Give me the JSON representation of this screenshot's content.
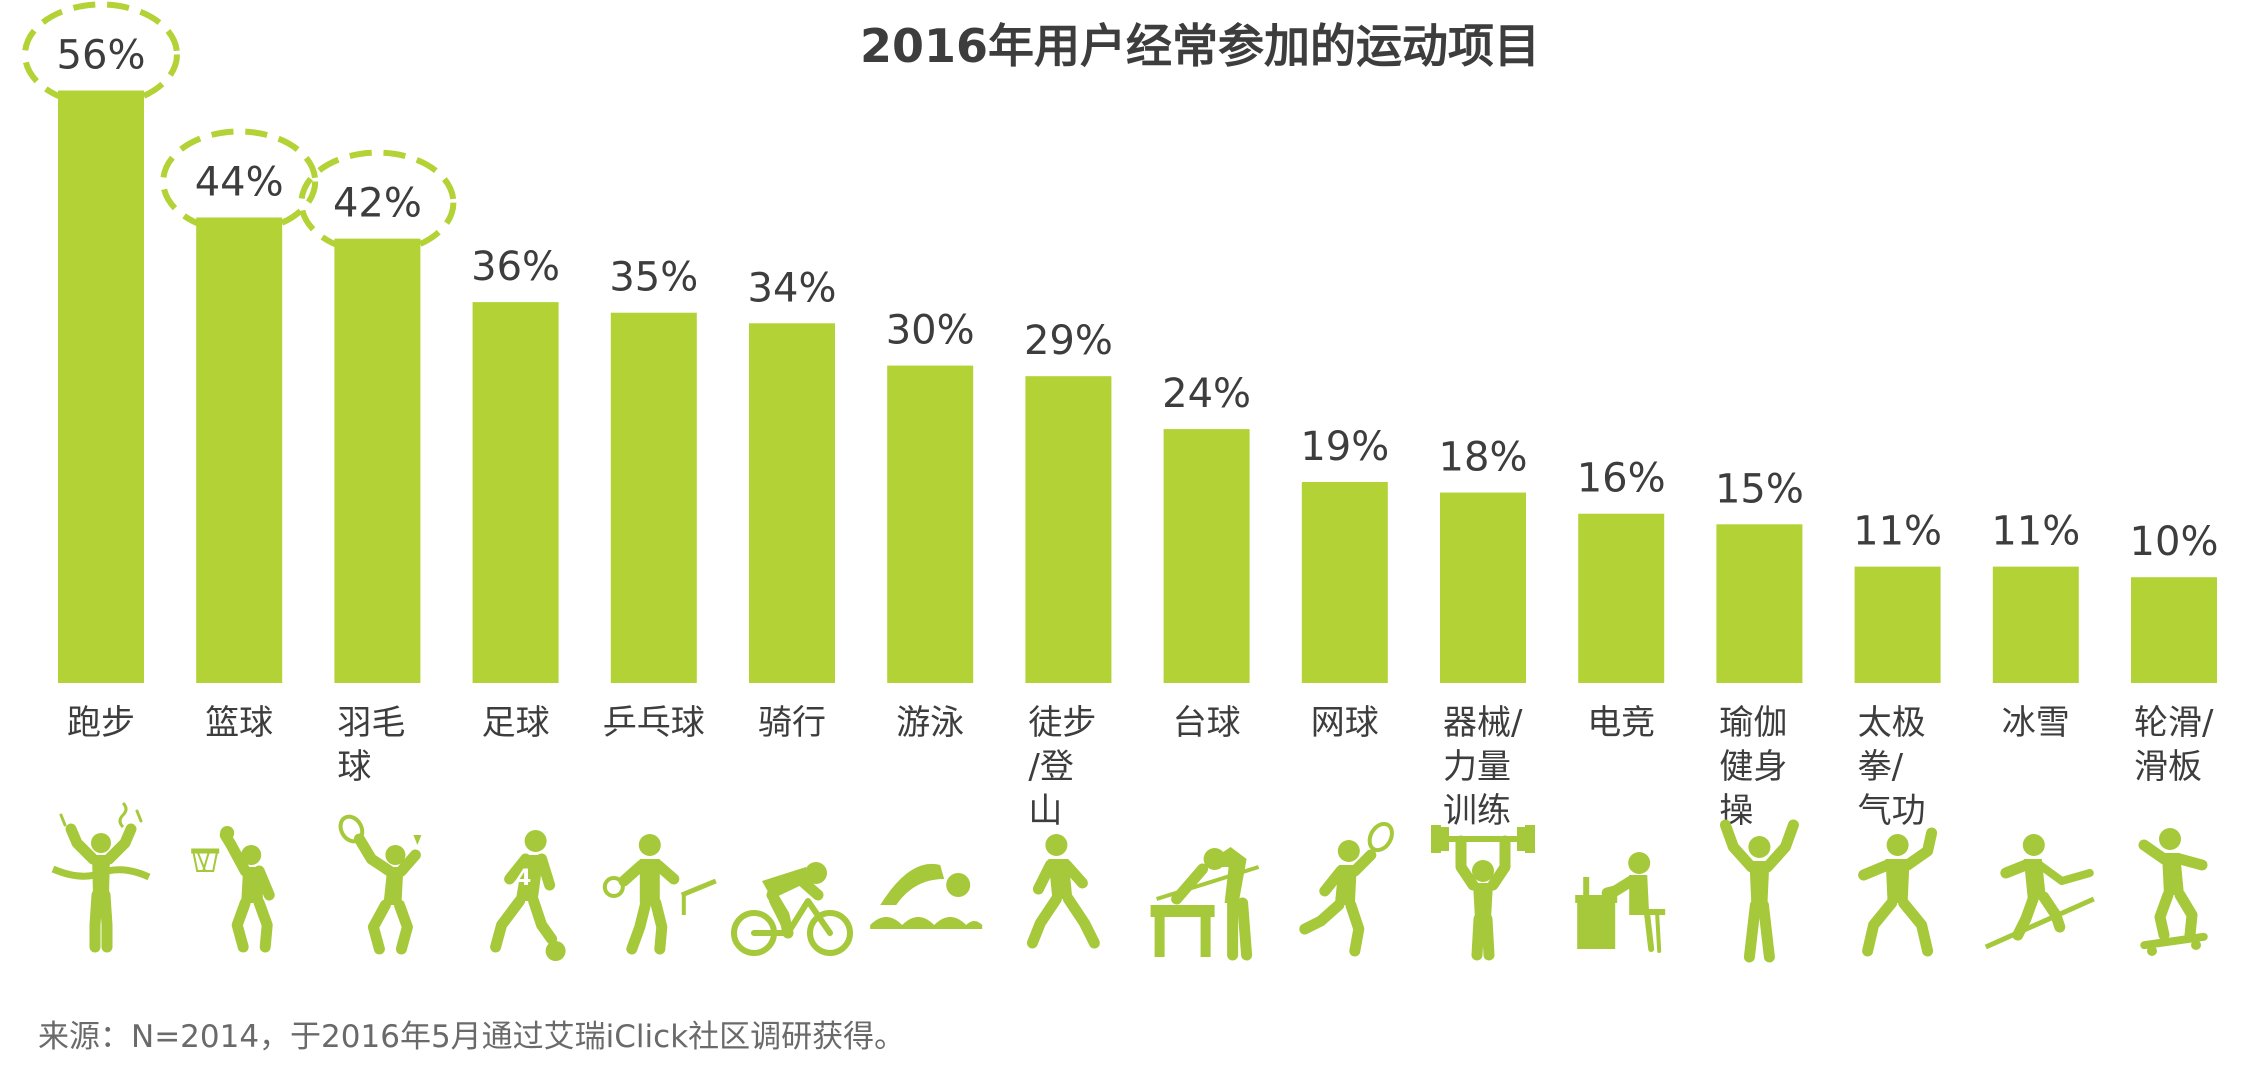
{
  "chart_data": {
    "type": "bar",
    "title": "2016年用户经常参加的运动项目",
    "categories": [
      "跑步",
      "篮球",
      "羽毛球",
      "足球",
      "乒乓球",
      "骑行",
      "游泳",
      "徒步/登山",
      "台球",
      "网球",
      "器械/力量训练",
      "电竞",
      "瑜伽健身操",
      "太极拳/气功",
      "冰雪",
      "轮滑/滑板"
    ],
    "category_lines": [
      [
        "跑步"
      ],
      [
        "篮球"
      ],
      [
        "羽毛",
        "球"
      ],
      [
        "足球"
      ],
      [
        "乒乓球"
      ],
      [
        "骑行"
      ],
      [
        "游泳"
      ],
      [
        "徒步",
        "/登",
        "山"
      ],
      [
        "台球"
      ],
      [
        "网球"
      ],
      [
        "器械/",
        "力量",
        "训练"
      ],
      [
        "电竞"
      ],
      [
        "瑜伽",
        "健身",
        "操"
      ],
      [
        "太极",
        "拳/",
        "气功"
      ],
      [
        "冰雪"
      ],
      [
        "轮滑/",
        "滑板"
      ]
    ],
    "values": [
      56,
      44,
      42,
      36,
      35,
      34,
      30,
      29,
      24,
      19,
      18,
      16,
      15,
      11,
      11,
      10
    ],
    "value_labels": [
      "56%",
      "44%",
      "42%",
      "36%",
      "35%",
      "34%",
      "30%",
      "29%",
      "24%",
      "19%",
      "18%",
      "16%",
      "15%",
      "11%",
      "11%",
      "10%"
    ],
    "highlighted": [
      true,
      true,
      true,
      false,
      false,
      false,
      false,
      false,
      false,
      false,
      false,
      false,
      false,
      false,
      false,
      false
    ],
    "icons": [
      "running-finish-icon",
      "basketball-icon",
      "badminton-icon",
      "soccer-icon",
      "table-tennis-icon",
      "cycling-icon",
      "swimming-icon",
      "hiking-icon",
      "billiards-icon",
      "tennis-icon",
      "weightlifting-icon",
      "esports-icon",
      "yoga-icon",
      "tai-chi-icon",
      "skiing-icon",
      "skateboarding-icon"
    ],
    "ylim": [
      0,
      60
    ],
    "grid": false,
    "legend": "none",
    "xlabel": "",
    "ylabel": ""
  },
  "source": "来源：N=2014，于2016年5月通过艾瑞iClick社区调研获得。",
  "colors": {
    "bar": "#b2d235",
    "icon": "#a5c93a",
    "text": "#3d3d3d",
    "source": "#6a6a6a"
  }
}
